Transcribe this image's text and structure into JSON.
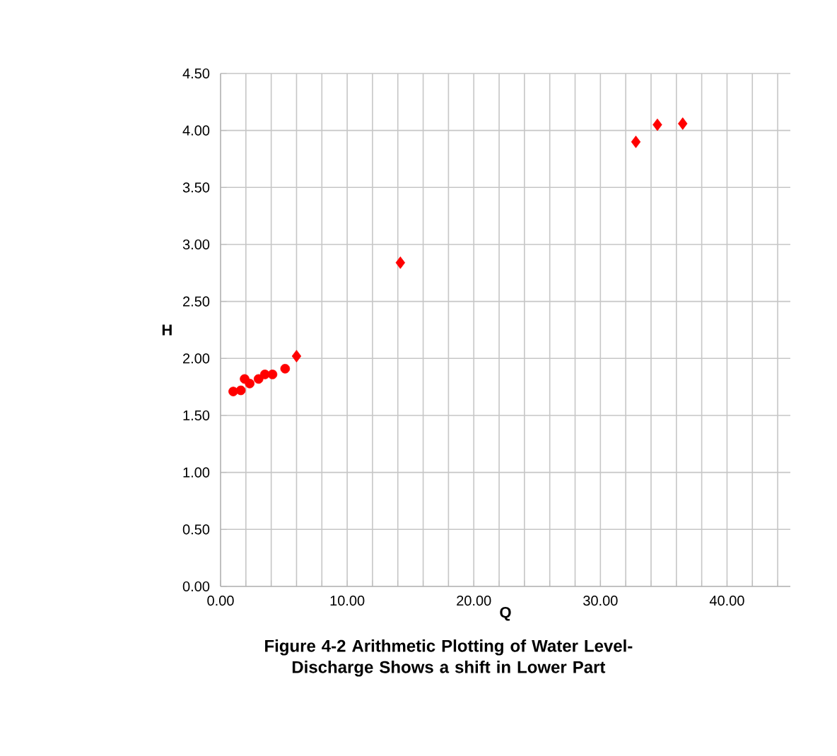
{
  "chart_data": {
    "type": "scatter",
    "title": "Figure 4-2 Arithmetic Plotting of Water Level-Discharge Shows a shift in Lower Part",
    "xlabel": "Q",
    "ylabel": "H",
    "series": [
      {
        "color": "#ff0000",
        "marker": "circle",
        "x": [
          1.0,
          1.6,
          1.9,
          2.3,
          3.0,
          3.5,
          4.1,
          5.1
        ],
        "values": [
          1.71,
          1.72,
          1.82,
          1.78,
          1.82,
          1.86,
          1.86,
          1.91
        ]
      },
      {
        "color": "#ff0000",
        "marker": "diamond",
        "x": [
          6.0,
          14.2,
          32.8,
          34.5,
          36.5
        ],
        "values": [
          2.02,
          2.84,
          3.9,
          4.05,
          4.06
        ]
      }
    ],
    "xlim": [
      0,
      45
    ],
    "ylim": [
      0,
      4.5
    ],
    "xticks": [
      {
        "value": 0,
        "label": "0.00"
      },
      {
        "value": 2,
        "label": null
      },
      {
        "value": 4,
        "label": null
      },
      {
        "value": 6,
        "label": null
      },
      {
        "value": 8,
        "label": null
      },
      {
        "value": 10,
        "label": "10.00"
      },
      {
        "value": 12,
        "label": null
      },
      {
        "value": 14,
        "label": null
      },
      {
        "value": 16,
        "label": null
      },
      {
        "value": 18,
        "label": null
      },
      {
        "value": 20,
        "label": "20.00"
      },
      {
        "value": 22,
        "label": null
      },
      {
        "value": 24,
        "label": null
      },
      {
        "value": 26,
        "label": null
      },
      {
        "value": 28,
        "label": null
      },
      {
        "value": 30,
        "label": "30.00"
      },
      {
        "value": 32,
        "label": null
      },
      {
        "value": 34,
        "label": null
      },
      {
        "value": 36,
        "label": null
      },
      {
        "value": 38,
        "label": null
      },
      {
        "value": 40,
        "label": "40.00"
      },
      {
        "value": 42,
        "label": null
      },
      {
        "value": 44,
        "label": null
      }
    ],
    "yticks": [
      {
        "value": 0,
        "label": "0.00"
      },
      {
        "value": 0.5,
        "label": "0.50"
      },
      {
        "value": 1,
        "label": "1.00"
      },
      {
        "value": 1.5,
        "label": "1.50"
      },
      {
        "value": 2,
        "label": "2.00"
      },
      {
        "value": 2.5,
        "label": "2.50"
      },
      {
        "value": 3,
        "label": "3.00"
      },
      {
        "value": 3.5,
        "label": "3.50"
      },
      {
        "value": 4,
        "label": "4.00"
      },
      {
        "value": 4.5,
        "label": "4.50"
      }
    ],
    "grid": true
  }
}
